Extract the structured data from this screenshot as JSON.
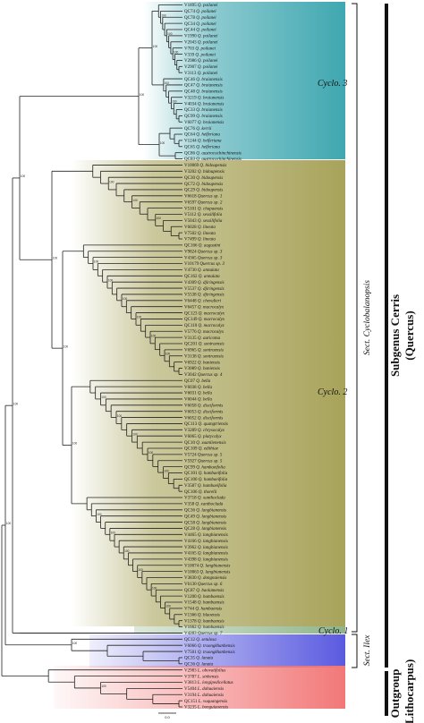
{
  "figure": {
    "clades": {
      "cyclo3": {
        "label": "Cyclo. 3",
        "color": "#3fa7b0"
      },
      "cyclo2": {
        "label": "Cyclo. 2",
        "color": "#a8a35a"
      },
      "cyclo1": {
        "label": "Cyclo. 1",
        "color": "#8fb48a"
      },
      "ilex": {
        "color": "#5a5ae0"
      },
      "outgroup_band": {
        "color": "#f27878"
      }
    },
    "section_labels": {
      "cyclobalanopsis": "Sect. Cyclobalanopsis",
      "ilex": "Sect. Ilex"
    },
    "group_labels": {
      "subgenus_line1": "Subgenus Cerris",
      "subgenus_line2": "(Quercus)",
      "outgroup_line1": "Outgroup",
      "outgroup_line2": "(Lithocarpus)"
    },
    "scale_bar": "0.0",
    "tips": [
      [
        "V1895",
        "Q. poilanei"
      ],
      [
        "QC74",
        "Q. poilanei"
      ],
      [
        "QC78",
        "Q. poilanei"
      ],
      [
        "QC34",
        "Q. poilanei"
      ],
      [
        "QC44",
        "Q. poilanei"
      ],
      [
        "V1990",
        "Q. poilanei"
      ],
      [
        "V2043",
        "Q. poilanei"
      ],
      [
        "V703",
        "Q. poilanei"
      ],
      [
        "V339",
        "Q. poilanei"
      ],
      [
        "V2986",
        "Q. poilanei"
      ],
      [
        "V2907",
        "Q. poilanei"
      ],
      [
        "V3113",
        "Q. poilanei"
      ],
      [
        "QC46",
        "Q. braianensis"
      ],
      [
        "QC47",
        "Q. braianensis"
      ],
      [
        "QC48",
        "Q. braianensis"
      ],
      [
        "V3219",
        "Q. braianensis"
      ],
      [
        "V4034",
        "Q. braianensis"
      ],
      [
        "QC33",
        "Q. braianensis"
      ],
      [
        "QC99",
        "Q. braianensis"
      ],
      [
        "V6077",
        "Q. braianensis"
      ],
      [
        "QC76",
        "Q. kerrii"
      ],
      [
        "QC64",
        "Q. helferiana"
      ],
      [
        "V1244",
        "Q. helferiana"
      ],
      [
        "QC65",
        "Q. helferiana"
      ],
      [
        "QC86",
        "Q. austrocochinchinensis"
      ],
      [
        "QC83",
        "Q. austrocochinchinensis"
      ],
      [
        "V10069",
        "Q. bidoupensis"
      ],
      [
        "V3202",
        "Q. bidoupensis"
      ],
      [
        "QC30",
        "Q. bidoupensis"
      ],
      [
        "QC72",
        "Q. bidoupensis"
      ],
      [
        "QC29",
        "Q. bidoupensis"
      ],
      [
        "V6618",
        "Quercus sp. 1"
      ],
      [
        "V6597",
        "Quercus sp. 2"
      ],
      [
        "V5101",
        "Q. chapaensis"
      ],
      [
        "V5112",
        "Q. sessilifolia"
      ],
      [
        "V5043",
        "Q. sessilifolia"
      ],
      [
        "V6028",
        "Q. lineata"
      ],
      [
        "V7502",
        "Q. lineata"
      ],
      [
        "V7499",
        "Q. lineata"
      ],
      [
        "QC166",
        "Q. augustini"
      ],
      [
        "V9824",
        "Quercus sp. 3"
      ],
      [
        "V4365",
        "Quercus sp. 3"
      ],
      [
        "V10179",
        "Quercus sp. 3"
      ],
      [
        "V4730",
        "Q. annulata"
      ],
      [
        "QC162",
        "Q. annulata"
      ],
      [
        "V4309",
        "Q. djiringensis"
      ],
      [
        "V5537",
        "Q. djiringensis"
      ],
      [
        "V5538",
        "Q. djiringensis"
      ],
      [
        "V6448",
        "Q. chevalieri"
      ],
      [
        "V6457",
        "Q. macrocalyx"
      ],
      [
        "QC123",
        "Q. macrocalyx"
      ],
      [
        "QC149",
        "Q. macrocalyx"
      ],
      [
        "QC110",
        "Q. macrocalyx"
      ],
      [
        "V5776",
        "Q. macrocalyx"
      ],
      [
        "V3135",
        "Q. auricoma"
      ],
      [
        "QC201",
        "Q. sontraensis"
      ],
      [
        "V6965",
        "Q. sontraensis"
      ],
      [
        "V3138",
        "Q. sontraensis"
      ],
      [
        "V6922",
        "Q. baniensis"
      ],
      [
        "V3089",
        "Q. baniensis"
      ],
      [
        "V3042",
        "Quercus sp. 4"
      ],
      [
        "QC07",
        "Q. bella"
      ],
      [
        "V6038",
        "Q. bella"
      ],
      [
        "V6031",
        "Q. bella"
      ],
      [
        "V6044",
        "Q. bella"
      ],
      [
        "V6058",
        "Q. disciformis"
      ],
      [
        "V6053",
        "Q. disciformis"
      ],
      [
        "V6052",
        "Q. disciformis"
      ],
      [
        "QC113",
        "Q. quangtriensis"
      ],
      [
        "V3289",
        "Q. chrysocalyx"
      ],
      [
        "V6065",
        "Q. platycalyx"
      ],
      [
        "QC10",
        "Q. xuanlienensis"
      ],
      [
        "QC109",
        "Q. edithiae"
      ],
      [
        "V5724",
        "Quercus sp. 5"
      ],
      [
        "V5927",
        "Quercus sp. 5"
      ],
      [
        "QC99",
        "Q. hambaeifolia"
      ],
      [
        "QC101",
        "Q. hambaeifolia"
      ],
      [
        "QC100",
        "Q. hambaeifolia"
      ],
      [
        "V3587",
        "Q. hambaeifolia"
      ],
      [
        "QC106",
        "Q. thorelii"
      ],
      [
        "V3718",
        "Q. xanthoclada"
      ],
      [
        "V358",
        "Q. xanthoclada"
      ],
      [
        "QC36",
        "Q. langbianensis"
      ],
      [
        "QC49",
        "Q. langbianensis"
      ],
      [
        "QC58",
        "Q. langbianensis"
      ],
      [
        "QC28",
        "Q. langbianensis"
      ],
      [
        "V4465",
        "Q. langbianensis"
      ],
      [
        "V4166",
        "Q. langbianensis"
      ],
      [
        "V3962",
        "Q. langbianensis"
      ],
      [
        "V4165",
        "Q. langbianensis"
      ],
      [
        "V4398",
        "Q. langbianensis"
      ],
      [
        "V10074",
        "Q. langbianensis"
      ],
      [
        "V10063",
        "Q. langbianensis"
      ],
      [
        "V3830",
        "Q. dongnaiensis"
      ],
      [
        "V6130",
        "Quercus sp. 6"
      ],
      [
        "QC87",
        "Q. baolamensis"
      ],
      [
        "V1200",
        "Q. hambaensis"
      ],
      [
        "V1548",
        "Q. hambaensis"
      ],
      [
        "V744",
        "Q. hambaensis"
      ],
      [
        "V1366",
        "Q. blaoensis"
      ],
      [
        "V1378",
        "Q. hambaensis"
      ],
      [
        "V1662",
        "Q. hambaensis"
      ],
      [
        "V4283",
        "Quercus sp. 7"
      ],
      [
        "QC12",
        "Q. setulosa"
      ],
      [
        "V6066",
        "Q. truongkhanhensis"
      ],
      [
        "V7501",
        "Q. truongkhanhensis"
      ],
      [
        "QC35",
        "Q. lanata"
      ],
      [
        "QC36",
        "Q. lanata"
      ],
      [
        "V2983",
        "L. obovatifolius"
      ],
      [
        "V3787",
        "L. sinhensis"
      ],
      [
        "V3813",
        "L. longipedicellatus"
      ],
      [
        "V5404",
        "L. dahuaiensis"
      ],
      [
        "V3194",
        "L. dahuaiensis"
      ],
      [
        "QC151",
        "L. vuquangensis"
      ],
      [
        "V3235",
        "L. bonguiaoensis"
      ]
    ]
  }
}
